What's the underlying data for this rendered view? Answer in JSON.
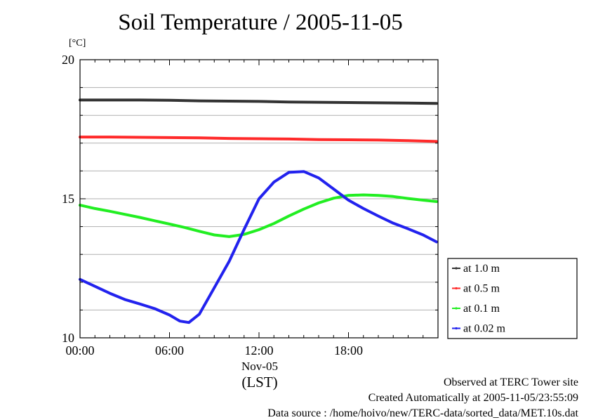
{
  "title": "Soil Temperature / 2005-11-05",
  "unit_label": "[°C]",
  "x_date_label": "Nov-05",
  "x_axis_label": "(LST)",
  "footer": {
    "line1": "Observed at TERC Tower site",
    "line2": "Created Automatically at 2005-11-05/23:55:09",
    "line3": "Data source : /home/hoivo/new/TERC-data/sorted_data/MET.10s.dat"
  },
  "chart_data": {
    "type": "line",
    "title": "Soil Temperature / 2005-11-05",
    "xlabel": "(LST)",
    "ylabel": "[°C]",
    "xlim": [
      0,
      24
    ],
    "ylim": [
      10,
      20
    ],
    "x_ticks": [
      {
        "value": 0,
        "label": "00:00"
      },
      {
        "value": 6,
        "label": "06:00"
      },
      {
        "value": 12,
        "label": "12:00"
      },
      {
        "value": 18,
        "label": "18:00"
      }
    ],
    "y_ticks": [
      {
        "value": 10,
        "label": "10"
      },
      {
        "value": 15,
        "label": "15"
      },
      {
        "value": 20,
        "label": "20"
      }
    ],
    "grid": true,
    "legend_position": "right",
    "series": [
      {
        "name": "at 1.0 m",
        "color": "#333333",
        "points": [
          [
            0,
            18.55
          ],
          [
            2,
            18.55
          ],
          [
            4,
            18.55
          ],
          [
            6,
            18.54
          ],
          [
            8,
            18.52
          ],
          [
            10,
            18.51
          ],
          [
            12,
            18.5
          ],
          [
            14,
            18.48
          ],
          [
            16,
            18.47
          ],
          [
            18,
            18.46
          ],
          [
            20,
            18.45
          ],
          [
            22,
            18.44
          ],
          [
            23.9,
            18.43
          ]
        ]
      },
      {
        "name": "at 0.5 m",
        "color": "#ff2a2a",
        "points": [
          [
            0,
            17.22
          ],
          [
            2,
            17.22
          ],
          [
            4,
            17.21
          ],
          [
            6,
            17.2
          ],
          [
            8,
            17.19
          ],
          [
            10,
            17.17
          ],
          [
            12,
            17.16
          ],
          [
            14,
            17.15
          ],
          [
            16,
            17.13
          ],
          [
            18,
            17.12
          ],
          [
            20,
            17.11
          ],
          [
            22,
            17.09
          ],
          [
            23.9,
            17.06
          ]
        ]
      },
      {
        "name": "at 0.1 m",
        "color": "#22ee22",
        "points": [
          [
            0,
            14.77
          ],
          [
            1,
            14.65
          ],
          [
            2,
            14.55
          ],
          [
            3,
            14.44
          ],
          [
            4,
            14.33
          ],
          [
            5,
            14.21
          ],
          [
            6,
            14.09
          ],
          [
            7,
            13.97
          ],
          [
            8,
            13.83
          ],
          [
            9,
            13.7
          ],
          [
            10,
            13.64
          ],
          [
            11,
            13.72
          ],
          [
            12,
            13.89
          ],
          [
            13,
            14.11
          ],
          [
            14,
            14.38
          ],
          [
            15,
            14.63
          ],
          [
            16,
            14.85
          ],
          [
            17,
            15.02
          ],
          [
            18,
            15.12
          ],
          [
            19,
            15.14
          ],
          [
            20,
            15.12
          ],
          [
            21,
            15.08
          ],
          [
            22,
            15.01
          ],
          [
            23,
            14.95
          ],
          [
            23.9,
            14.9
          ]
        ]
      },
      {
        "name": "at 0.02 m",
        "color": "#2222ee",
        "points": [
          [
            0,
            12.1
          ],
          [
            1,
            11.85
          ],
          [
            2,
            11.6
          ],
          [
            3,
            11.38
          ],
          [
            4,
            11.22
          ],
          [
            5,
            11.05
          ],
          [
            6,
            10.82
          ],
          [
            6.7,
            10.6
          ],
          [
            7.3,
            10.55
          ],
          [
            8,
            10.85
          ],
          [
            9,
            11.8
          ],
          [
            10,
            12.75
          ],
          [
            11,
            13.9
          ],
          [
            12,
            15.0
          ],
          [
            13,
            15.6
          ],
          [
            14,
            15.95
          ],
          [
            15,
            15.98
          ],
          [
            16,
            15.75
          ],
          [
            17,
            15.35
          ],
          [
            18,
            14.95
          ],
          [
            19,
            14.65
          ],
          [
            20,
            14.38
          ],
          [
            21,
            14.12
          ],
          [
            22,
            13.92
          ],
          [
            23,
            13.7
          ],
          [
            23.9,
            13.45
          ]
        ]
      }
    ]
  }
}
